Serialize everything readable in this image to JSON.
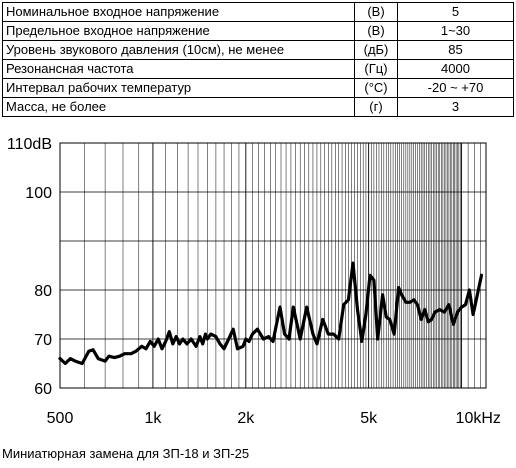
{
  "spec_table": {
    "rows": [
      {
        "name": "Номинальное входное напряжение",
        "unit": "(В)",
        "value": "5"
      },
      {
        "name": "Предельное входное напряжение",
        "unit": "(В)",
        "value": "1~30"
      },
      {
        "name": "Уровень звукового давления (10см), не менее",
        "unit": "(дБ)",
        "value": "85"
      },
      {
        "name": "Резонансная частота",
        "unit": "(Гц)",
        "value": "4000"
      },
      {
        "name": "Интервал рабочих температур",
        "unit": "(°С)",
        "value": "-20 ~ +70"
      },
      {
        "name": "Масса, не более",
        "unit": "(г)",
        "value": "3"
      }
    ]
  },
  "chart_data": {
    "type": "line",
    "xscale": "log",
    "xlim": [
      500,
      12000
    ],
    "ylim": [
      60,
      110
    ],
    "grid": true,
    "y_ticks": [
      {
        "value": 110,
        "label": "110dB"
      },
      {
        "value": 100,
        "label": "100"
      },
      {
        "value": 80,
        "label": "80"
      },
      {
        "value": 70,
        "label": "70"
      },
      {
        "value": 60,
        "label": "60"
      }
    ],
    "x_ticks": [
      {
        "value": 500,
        "label": "500"
      },
      {
        "value": 1000,
        "label": "1k"
      },
      {
        "value": 2000,
        "label": "2k"
      },
      {
        "value": 5000,
        "label": "5k"
      },
      {
        "value": 10000,
        "label": "10kHz"
      }
    ],
    "series": [
      {
        "x": [
          500,
          520,
          540,
          560,
          590,
          620,
          640,
          665,
          700,
          720,
          750,
          780,
          810,
          850,
          880,
          920,
          950,
          980,
          1010,
          1040,
          1070,
          1100,
          1130,
          1160,
          1190,
          1220,
          1250,
          1290,
          1330,
          1380,
          1420,
          1450,
          1480,
          1500,
          1540,
          1600,
          1650,
          1700,
          1760,
          1820,
          1880,
          1960,
          2000,
          2050,
          2100,
          2180,
          2280,
          2370,
          2450,
          2580,
          2670,
          2760,
          2850,
          3000,
          3150,
          3300,
          3400,
          3550,
          3700,
          3850,
          4000,
          4150,
          4300,
          4450,
          4600,
          4750,
          4900,
          5050,
          5200,
          5350,
          5550,
          5700,
          5850,
          6050,
          6250,
          6400,
          6600,
          6800,
          7000,
          7200,
          7400,
          7600,
          7800,
          8000,
          8200,
          8500,
          8800,
          9100,
          9400,
          9700,
          10000,
          10300,
          10600,
          10900,
          11200,
          11600
        ],
        "y": [
          66,
          65,
          66,
          65.5,
          65,
          67.5,
          67.8,
          66,
          65.5,
          66.5,
          66.2,
          66.5,
          67,
          67,
          67.5,
          68.5,
          68,
          69.5,
          68.5,
          70,
          68,
          69.5,
          71.5,
          69,
          70.5,
          69,
          70,
          69,
          70,
          68.5,
          70.5,
          69,
          71,
          70,
          71,
          70.5,
          69,
          68,
          70,
          72,
          68,
          68.5,
          70,
          69.5,
          71,
          72,
          70,
          70.5,
          69.5,
          76.5,
          71,
          70,
          76.5,
          70,
          76.5,
          71,
          69,
          74,
          71,
          71,
          70,
          77,
          78,
          85.5,
          76,
          69.5,
          75,
          83,
          82,
          70,
          79,
          74.5,
          74,
          71,
          80.5,
          79,
          77.5,
          77.5,
          78,
          77,
          74,
          76,
          73.5,
          74,
          75.5,
          76,
          75.5,
          77,
          73,
          75.5,
          76.5,
          77,
          80,
          75,
          78.5,
          83
        ]
      }
    ]
  },
  "caption": "Миниатюрная замена для ЗП-18 и ЗП-25"
}
